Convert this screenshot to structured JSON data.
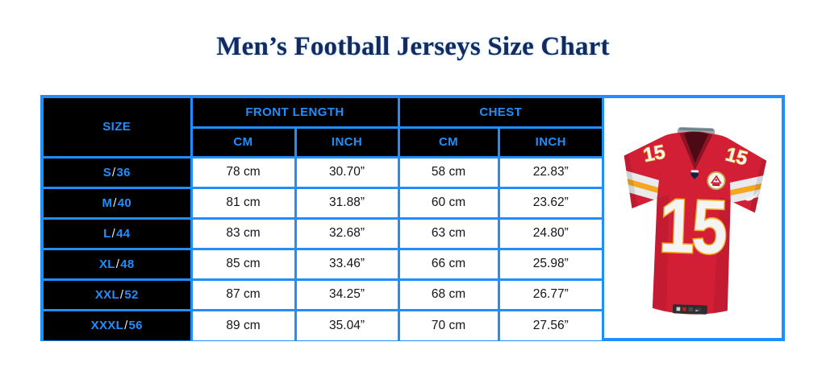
{
  "page": {
    "title": "Men’s Football Jerseys Size Chart"
  },
  "table": {
    "size_header": "SIZE",
    "group_headers": [
      "FRONT LENGTH",
      "CHEST"
    ],
    "unit_headers": [
      "CM",
      "INCH",
      "CM",
      "INCH"
    ],
    "rows": [
      {
        "size": "S",
        "slash": "/",
        "num": "36",
        "values": [
          "78 cm",
          "30.70”",
          "58 cm",
          "22.83”"
        ]
      },
      {
        "size": "M",
        "slash": "/",
        "num": "40",
        "values": [
          "81 cm",
          "31.88”",
          "60 cm",
          "23.62”"
        ]
      },
      {
        "size": "L",
        "slash": "/",
        "num": "44",
        "values": [
          "83 cm",
          "32.68”",
          "63 cm",
          "24.80”"
        ]
      },
      {
        "size": "XL",
        "slash": "/",
        "num": "48",
        "values": [
          "85 cm",
          "33.46”",
          "66 cm",
          "25.98”"
        ]
      },
      {
        "size": "XXL",
        "slash": "/",
        "num": "52",
        "values": [
          "87 cm",
          "34.25”",
          "68 cm",
          "26.77”"
        ]
      },
      {
        "size": "XXXL",
        "slash": "/",
        "num": "56",
        "values": [
          "89 cm",
          "35.04”",
          "70 cm",
          "27.56”"
        ]
      }
    ]
  },
  "jersey": {
    "chest_number": "15",
    "shoulder_number": "15"
  },
  "colors": {
    "accent_blue": "#1f8fff",
    "header_bg": "#000000",
    "title_navy": "#16295c",
    "jersey_red": "#d21f36",
    "jersey_gold": "#f5a81c"
  }
}
